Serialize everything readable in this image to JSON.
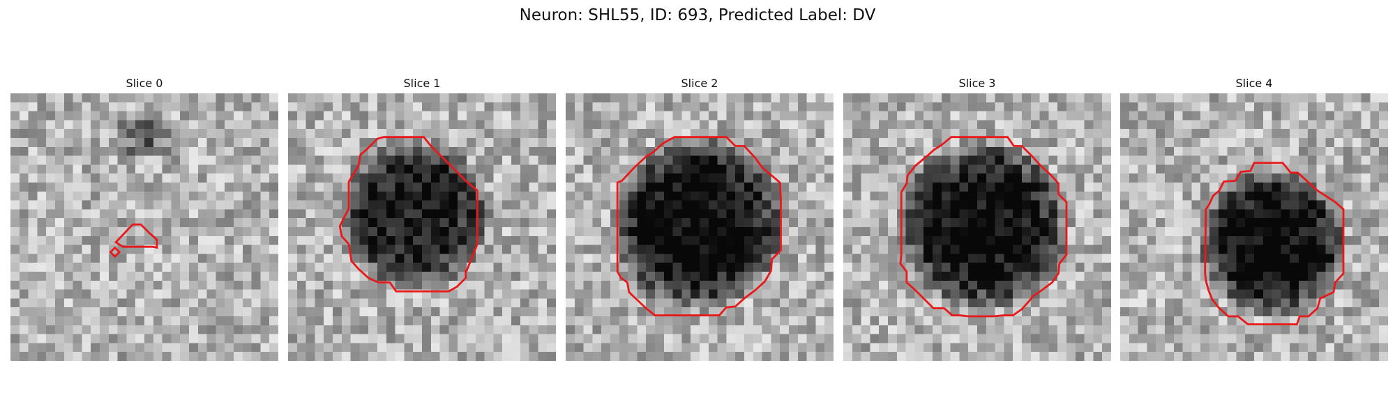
{
  "figure": {
    "title": "Neuron: SHL55, ID: 693, Predicted Label: DV",
    "contour_color": "#e8191a"
  },
  "panels": [
    {
      "title": "Slice 0",
      "seed": 11,
      "blob": {
        "strength": 0.0
      }
    },
    {
      "title": "Slice 1",
      "seed": 23,
      "blob": {
        "strength": 0.62
      }
    },
    {
      "title": "Slice 2",
      "seed": 37,
      "blob": {
        "strength": 0.72
      }
    },
    {
      "title": "Slice 3",
      "seed": 53,
      "blob": {
        "strength": 0.7
      }
    },
    {
      "title": "Slice 4",
      "seed": 71,
      "blob": {
        "strength": 0.72
      }
    }
  ]
}
